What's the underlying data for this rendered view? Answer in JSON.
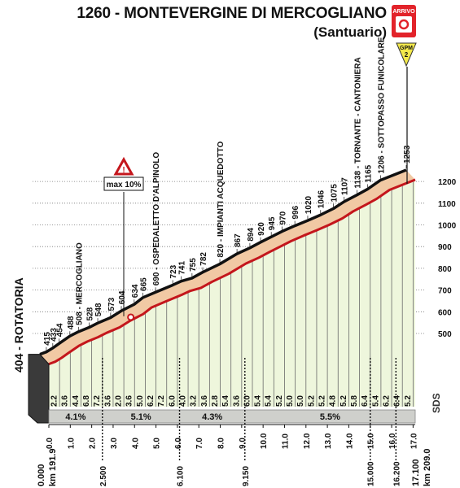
{
  "header": {
    "title": "1260 - MONTEVERGINE DI MERCOGLIANO",
    "subtitle": "(Santuario)",
    "finish_label": "ARRIVO",
    "gpm_label": "GPM",
    "gpm_category": "2"
  },
  "colors": {
    "profile_fill": "#f1c9a4",
    "profile_outline": "#111111",
    "road_line": "#c4161c",
    "slope_fill": "#eef6dc",
    "segment_bar": "#cfd0cc",
    "finish_red": "#e2232a",
    "gpm_yellow": "#f3e94b"
  },
  "chart_data": {
    "type": "area",
    "title": "1260 - MONTEVERGINE DI MERCOGLIANO (Santuario)",
    "xlabel": "km",
    "ylabel": "",
    "xlim": [
      0,
      17.1
    ],
    "ylim": [
      404,
      1260
    ],
    "x_ticks": [
      "0.0",
      "1.0",
      "2.0",
      "3.0",
      "4.0",
      "5.0",
      "6.0",
      "7.0",
      "8.0",
      "9.0",
      "10.0",
      "11.0",
      "12.0",
      "13.0",
      "14.0",
      "15.0",
      "16.0",
      "17.0"
    ],
    "y_ticks": [
      "500",
      "600",
      "700",
      "800",
      "900",
      "1000",
      "1100",
      "1200"
    ],
    "start_label": "404 - ROTATORIA",
    "start_km_label": "0.000",
    "start_race_km": "km 191.9",
    "end_km_label": "17.100",
    "end_race_km": "km 209.0",
    "altitudes": [
      {
        "x": 0,
        "y": 404,
        "label": ""
      },
      {
        "x": 0.3,
        "y": 415,
        "label": "415"
      },
      {
        "x": 0.6,
        "y": 433,
        "label": "433"
      },
      {
        "x": 0.9,
        "y": 454,
        "label": "454"
      },
      {
        "x": 1.4,
        "y": 488,
        "label": "488"
      },
      {
        "x": 1.8,
        "y": 508,
        "label": "508 - MERCOGLIANO"
      },
      {
        "x": 2.3,
        "y": 528,
        "label": "528"
      },
      {
        "x": 2.7,
        "y": 548,
        "label": "548"
      },
      {
        "x": 3.3,
        "y": 573,
        "label": "573"
      },
      {
        "x": 3.8,
        "y": 604,
        "label": "604"
      },
      {
        "x": 4.4,
        "y": 634,
        "label": "634"
      },
      {
        "x": 4.8,
        "y": 665,
        "label": "665"
      },
      {
        "x": 5.4,
        "y": 690,
        "label": "690 - OSPEDALETTO D'ALPINOLO"
      },
      {
        "x": 6.2,
        "y": 723,
        "label": "723"
      },
      {
        "x": 6.6,
        "y": 741,
        "label": "741"
      },
      {
        "x": 7.1,
        "y": 755,
        "label": "755"
      },
      {
        "x": 7.6,
        "y": 782,
        "label": "782"
      },
      {
        "x": 8.4,
        "y": 820,
        "label": "820 - IMPIANTI ACQUEDOTTO"
      },
      {
        "x": 9.2,
        "y": 867,
        "label": "867"
      },
      {
        "x": 9.8,
        "y": 894,
        "label": "894"
      },
      {
        "x": 10.3,
        "y": 920,
        "label": "920"
      },
      {
        "x": 10.8,
        "y": 945,
        "label": "945"
      },
      {
        "x": 11.3,
        "y": 970,
        "label": "970"
      },
      {
        "x": 11.9,
        "y": 996,
        "label": "996"
      },
      {
        "x": 12.5,
        "y": 1020,
        "label": "1020"
      },
      {
        "x": 13.1,
        "y": 1046,
        "label": "1046"
      },
      {
        "x": 13.7,
        "y": 1075,
        "label": "1075"
      },
      {
        "x": 14.2,
        "y": 1107,
        "label": "1107"
      },
      {
        "x": 14.8,
        "y": 1138,
        "label": "1138 - TORNANTE - CANTONIERA"
      },
      {
        "x": 15.3,
        "y": 1165,
        "label": "1165"
      },
      {
        "x": 15.9,
        "y": 1206,
        "label": "1206 - SOTTOPASSO FUNICOLARE"
      },
      {
        "x": 17.1,
        "y": 1253,
        "label": "1253"
      }
    ],
    "slopes_per_km": [
      {
        "km": 0.0,
        "slope": "2.2"
      },
      {
        "km": 0.5,
        "slope": "3.6"
      },
      {
        "km": 1.0,
        "slope": "4.4"
      },
      {
        "km": 1.5,
        "slope": "6.8"
      },
      {
        "km": 2.0,
        "slope": "7.2"
      },
      {
        "km": 2.5,
        "slope": "3.6"
      },
      {
        "km": 3.0,
        "slope": "2.0"
      },
      {
        "km": 3.5,
        "slope": "3.6"
      },
      {
        "km": 4.0,
        "slope": "5.0"
      },
      {
        "km": 4.5,
        "slope": "6.2"
      },
      {
        "km": 5.0,
        "slope": "7.2"
      },
      {
        "km": 5.5,
        "slope": "6.0"
      },
      {
        "km": 6.0,
        "slope": "4.0"
      },
      {
        "km": 6.5,
        "slope": "3.2"
      },
      {
        "km": 7.0,
        "slope": "3.6"
      },
      {
        "km": 7.5,
        "slope": "2.8"
      },
      {
        "km": 8.0,
        "slope": "5.4"
      },
      {
        "km": 8.5,
        "slope": "3.6"
      },
      {
        "km": 9.0,
        "slope": "6.0"
      },
      {
        "km": 9.5,
        "slope": "5.4"
      },
      {
        "km": 10.0,
        "slope": "5.4"
      },
      {
        "km": 10.5,
        "slope": "5.2"
      },
      {
        "km": 11.0,
        "slope": "5.0"
      },
      {
        "km": 11.5,
        "slope": "5.0"
      },
      {
        "km": 12.0,
        "slope": "5.2"
      },
      {
        "km": 12.5,
        "slope": "5.2"
      },
      {
        "km": 13.0,
        "slope": "4.8"
      },
      {
        "km": 13.5,
        "slope": "5.2"
      },
      {
        "km": 14.0,
        "slope": "5.8"
      },
      {
        "km": 14.5,
        "slope": "6.4"
      },
      {
        "km": 15.0,
        "slope": "5.4"
      },
      {
        "km": 15.5,
        "slope": "6.2"
      },
      {
        "km": 16.0,
        "slope": "6.4"
      },
      {
        "km": 16.5,
        "slope": "5.2"
      }
    ],
    "segments": [
      {
        "from": 0,
        "to": 2.5,
        "avg": "4.1%"
      },
      {
        "from": 2.5,
        "to": 6.1,
        "avg": "5.1%"
      },
      {
        "from": 6.1,
        "to": 9.15,
        "avg": "4.3%"
      },
      {
        "from": 9.15,
        "to": 17.1,
        "avg": "5.5%"
      }
    ],
    "segment_markers": [
      {
        "km": 2.5,
        "label": "2.500"
      },
      {
        "km": 6.1,
        "label": "6.100"
      },
      {
        "km": 9.15,
        "label": "9.150"
      },
      {
        "km": 15.0,
        "label": "15.000"
      },
      {
        "km": 16.2,
        "label": "16.200"
      }
    ],
    "max_gradient": {
      "km": 3.9,
      "label": "max 10%"
    },
    "logo": "SDS"
  }
}
